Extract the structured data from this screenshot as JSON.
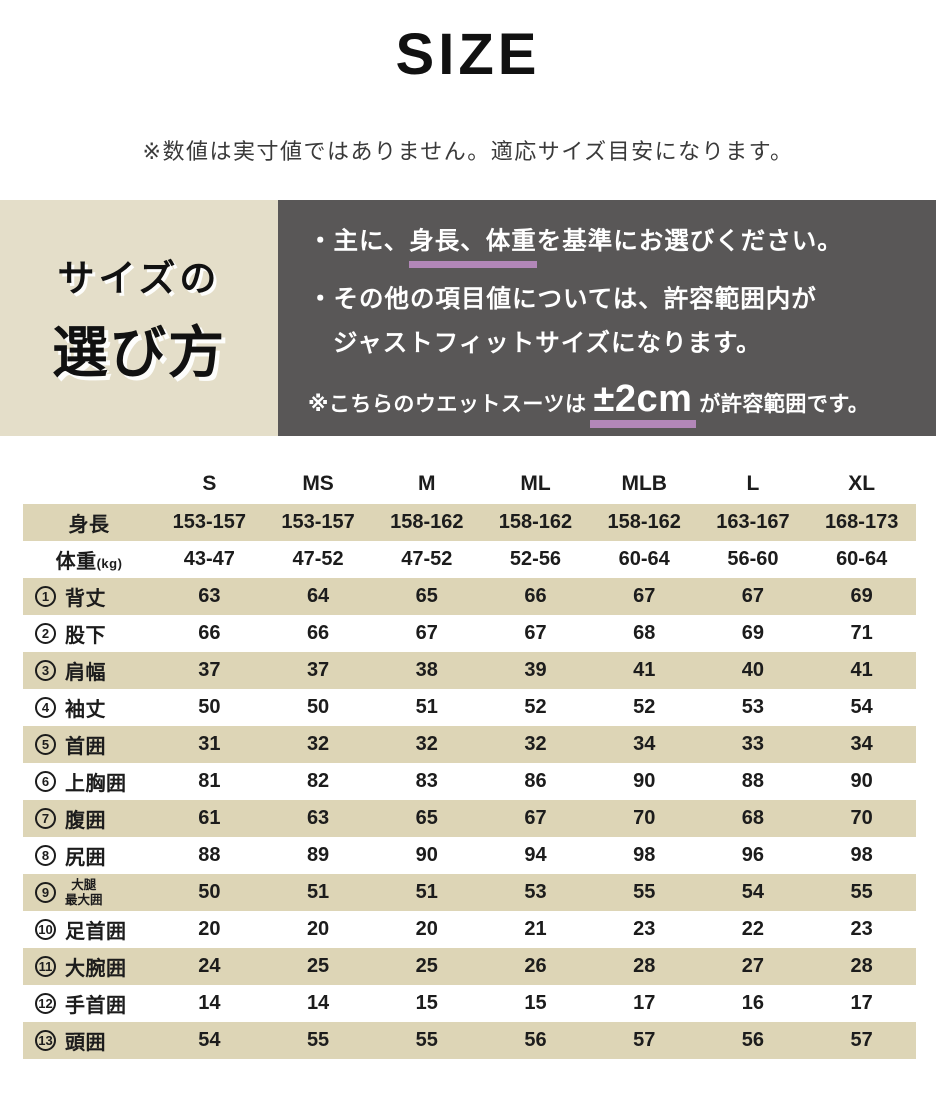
{
  "header": {
    "title": "SIZE",
    "note": "※数値は実寸値ではありません。適応サイズ目安になります。"
  },
  "size_guide": {
    "heading": {
      "line1": "サイズの",
      "line2": "選び方"
    },
    "bullet1": {
      "prefix": "・主に、",
      "emphasis": "身長、体重",
      "suffix": "を基準にお選びください。"
    },
    "bullet2": {
      "line1": "・その他の項目値については、許容範囲内が",
      "line2": "ジャストフィットサイズになります。"
    },
    "tolerance_note": {
      "prefix": "※こちらのウエットスーツは",
      "emphasis": "±2cm",
      "suffix": "が許容範囲です。"
    }
  },
  "size_table": {
    "columns": [
      "S",
      "MS",
      "M",
      "ML",
      "MLB",
      "L",
      "XL"
    ],
    "rows": [
      {
        "index": "",
        "label": "身長",
        "unit": "",
        "values": [
          "153-157",
          "153-157",
          "158-162",
          "158-162",
          "158-162",
          "163-167",
          "168-173"
        ]
      },
      {
        "index": "",
        "label": "体重",
        "unit": "(kg)",
        "values": [
          "43-47",
          "47-52",
          "47-52",
          "52-56",
          "60-64",
          "56-60",
          "60-64"
        ]
      },
      {
        "index": "1",
        "label": "背丈",
        "values": [
          "63",
          "64",
          "65",
          "66",
          "67",
          "67",
          "69"
        ]
      },
      {
        "index": "2",
        "label": "股下",
        "values": [
          "66",
          "66",
          "67",
          "67",
          "68",
          "69",
          "71"
        ]
      },
      {
        "index": "3",
        "label": "肩幅",
        "values": [
          "37",
          "37",
          "38",
          "39",
          "41",
          "40",
          "41"
        ]
      },
      {
        "index": "4",
        "label": "袖丈",
        "values": [
          "50",
          "50",
          "51",
          "52",
          "52",
          "53",
          "54"
        ]
      },
      {
        "index": "5",
        "label": "首囲",
        "values": [
          "31",
          "32",
          "32",
          "32",
          "34",
          "33",
          "34"
        ]
      },
      {
        "index": "6",
        "label": "上胸囲",
        "values": [
          "81",
          "82",
          "83",
          "86",
          "90",
          "88",
          "90"
        ]
      },
      {
        "index": "7",
        "label": "腹囲",
        "values": [
          "61",
          "63",
          "65",
          "67",
          "70",
          "68",
          "70"
        ]
      },
      {
        "index": "8",
        "label": "尻囲",
        "values": [
          "88",
          "89",
          "90",
          "94",
          "98",
          "96",
          "98"
        ]
      },
      {
        "index": "9",
        "label": "大腿",
        "label2": "最大囲",
        "values": [
          "50",
          "51",
          "51",
          "53",
          "55",
          "54",
          "55"
        ]
      },
      {
        "index": "10",
        "label": "足首囲",
        "values": [
          "20",
          "20",
          "20",
          "21",
          "23",
          "22",
          "23"
        ]
      },
      {
        "index": "11",
        "label": "大腕囲",
        "values": [
          "24",
          "25",
          "25",
          "26",
          "28",
          "27",
          "28"
        ]
      },
      {
        "index": "12",
        "label": "手首囲",
        "values": [
          "14",
          "14",
          "15",
          "15",
          "17",
          "16",
          "17"
        ]
      },
      {
        "index": "13",
        "label": "頭囲",
        "values": [
          "54",
          "55",
          "55",
          "56",
          "57",
          "56",
          "57"
        ]
      }
    ]
  },
  "colors": {
    "panel_beige": "#e4dec9",
    "row_beige": "#ddd5b6",
    "panel_dark": "#595757",
    "accent_purple": "#b287b8",
    "text_black": "#1c1c1c",
    "text_white": "#ffffff"
  }
}
